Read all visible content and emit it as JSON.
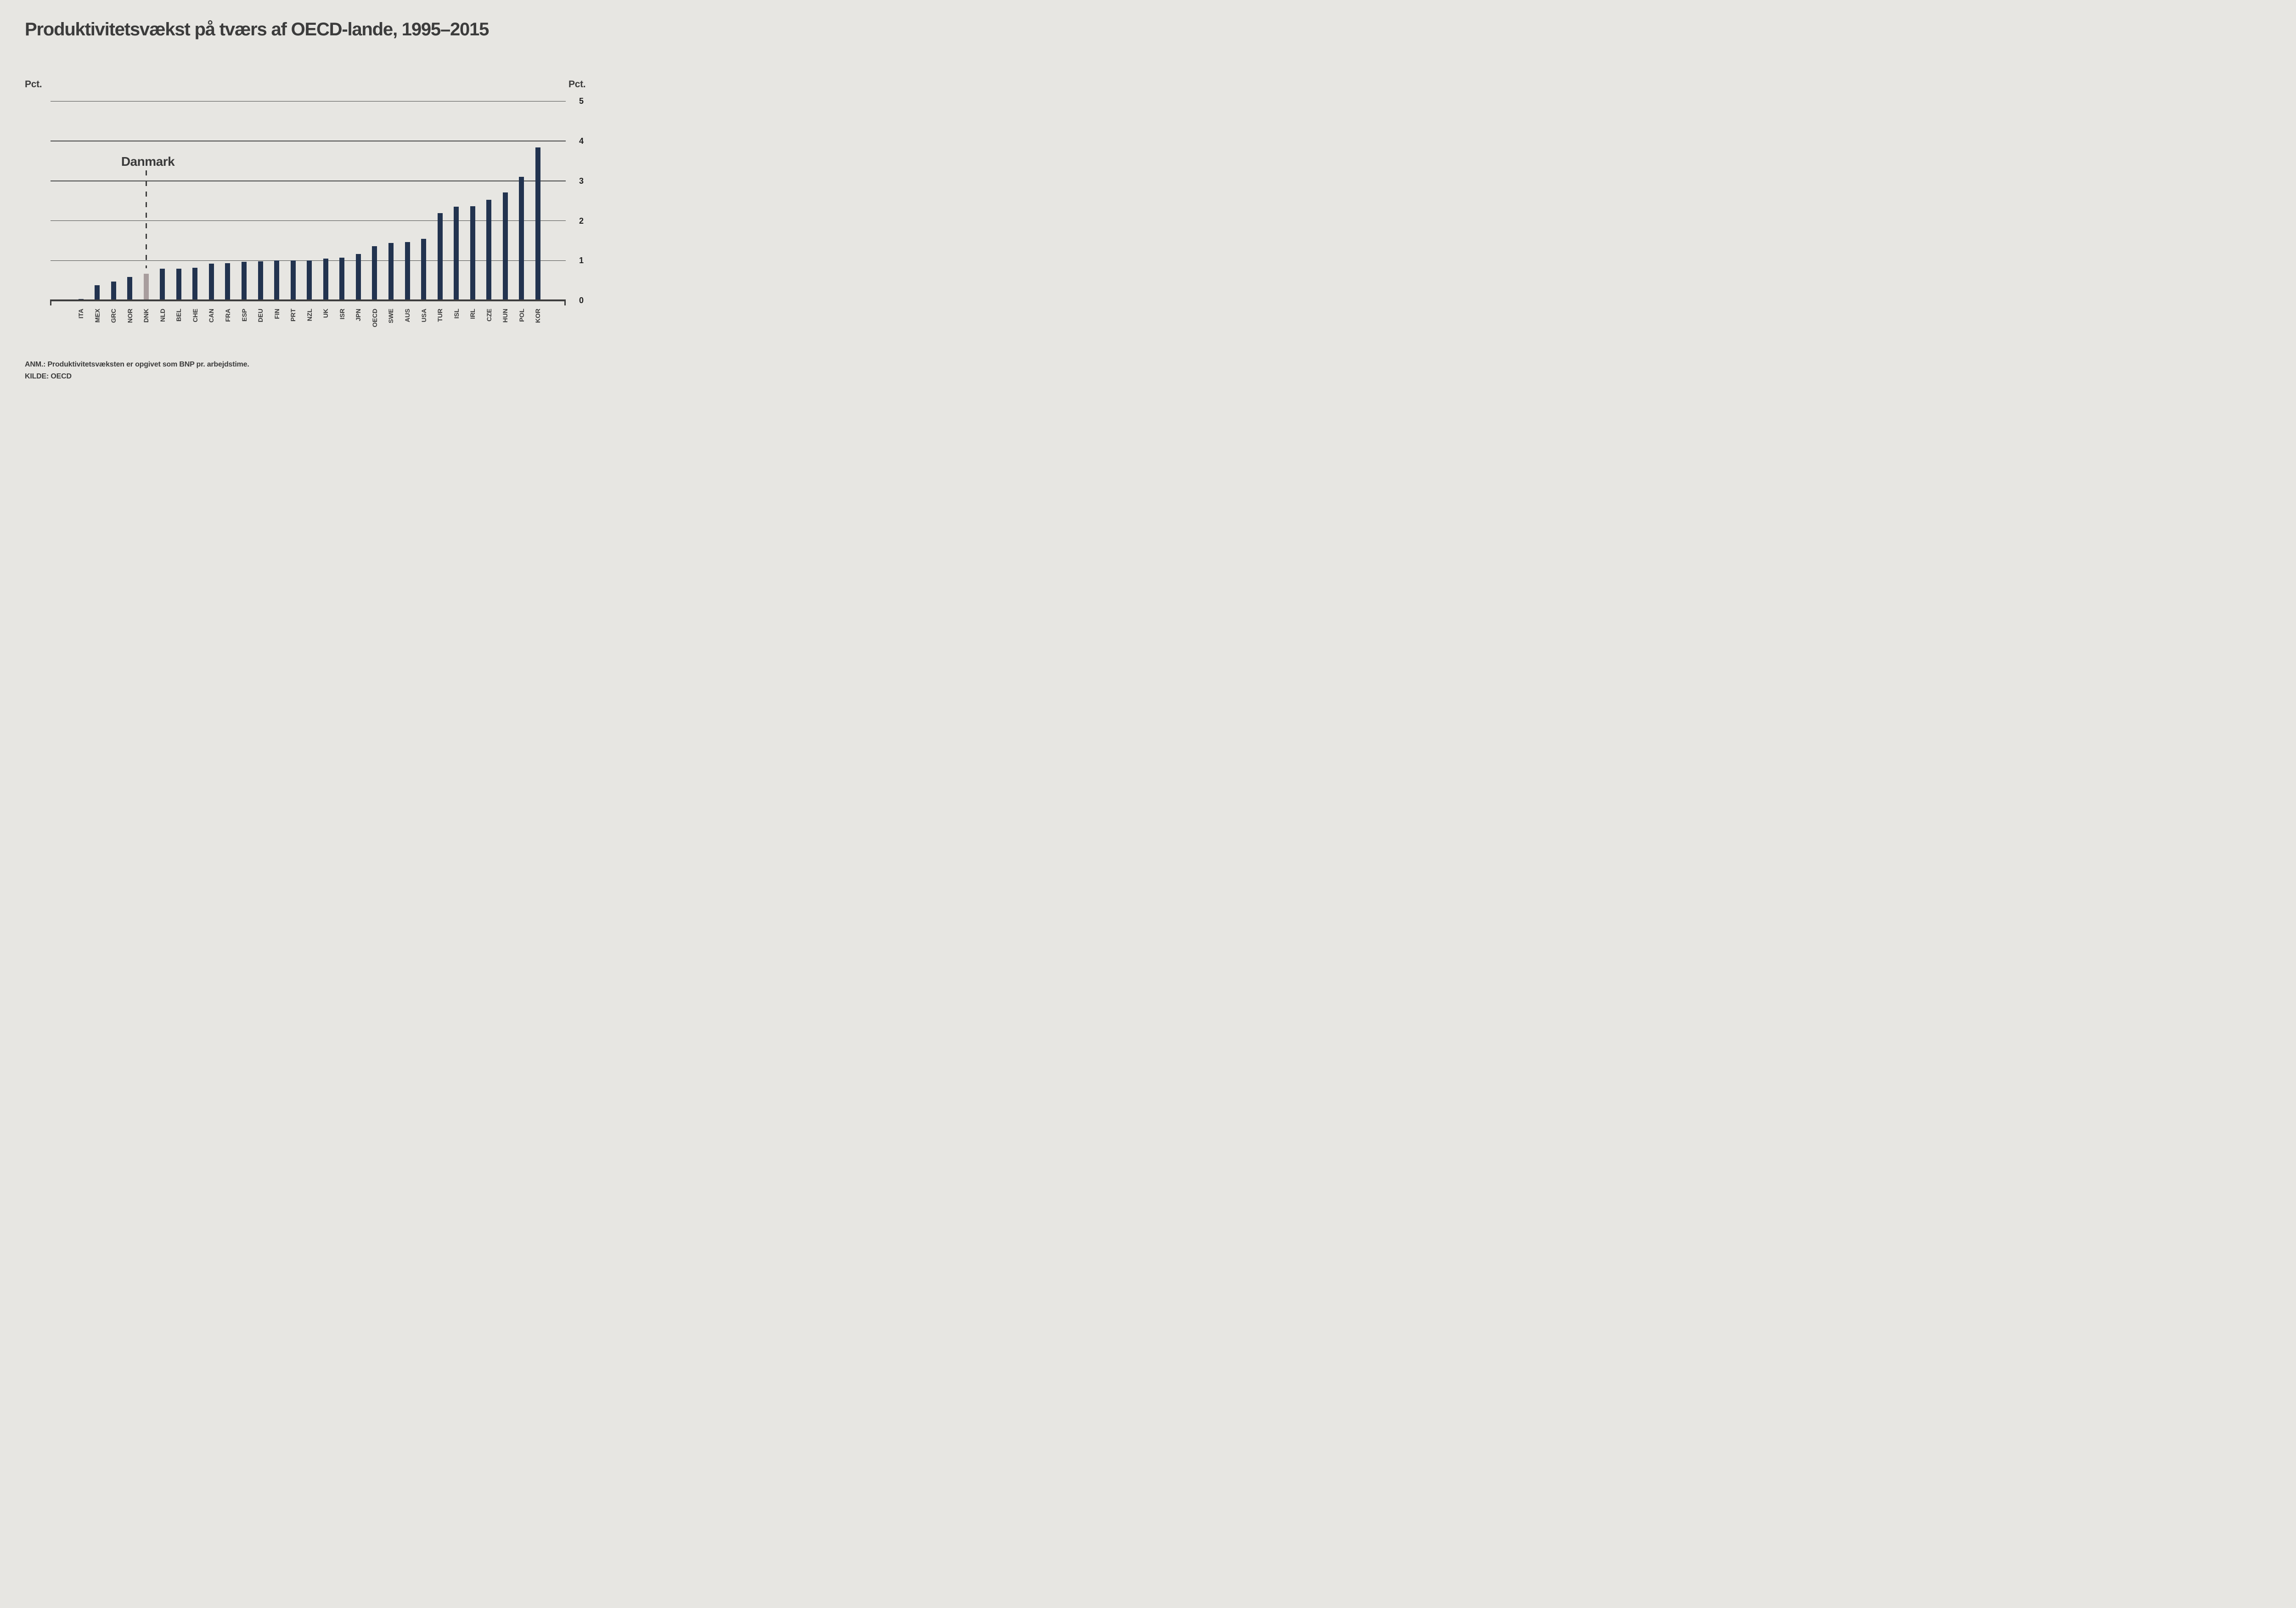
{
  "title": "Produktivitetsvækst på tværs af OECD-lande, 1995–2015",
  "axis": {
    "left_unit_label": "Pct.",
    "right_unit_label": "Pct."
  },
  "annotation": {
    "label": "Danmark",
    "target_category": "DNK"
  },
  "notes": {
    "line1": "ANM.: Produktivitetsvæksten er opgivet som BNP pr. arbejdstime.",
    "line2": "KILDE: OECD"
  },
  "colors": {
    "background": "#e7e6e2",
    "bar": "#22334f",
    "highlight_bar": "#a89d9d",
    "gridline": "#4b4b4b",
    "axis": "#3e3e3e",
    "text": "#3c3c3c",
    "tick_text": "#1f1f1f"
  },
  "chart_data": {
    "type": "bar",
    "title": "Produktivitetsvækst på tværs af OECD-lande, 1995–2015",
    "ylabel": "Pct.",
    "ylim": [
      0,
      5
    ],
    "yticks": [
      0,
      1,
      2,
      3,
      4,
      5
    ],
    "grid": true,
    "legend_position": "none",
    "highlight_category": "DNK",
    "categories": [
      "ITA",
      "MEX",
      "GRC",
      "NOR",
      "DNK",
      "NLD",
      "BEL",
      "CHE",
      "CAN",
      "FRA",
      "ESP",
      "DEU",
      "FIN",
      "PRT",
      "NZL",
      "UK",
      "ISR",
      "JPN",
      "OECD",
      "SWE",
      "AUS",
      "USA",
      "TUR",
      "ISL",
      "IRL",
      "CZE",
      "HUN",
      "POL",
      "KOR"
    ],
    "values": [
      0.04,
      0.38,
      0.47,
      0.59,
      0.67,
      0.8,
      0.8,
      0.82,
      0.92,
      0.93,
      0.97,
      0.98,
      1.0,
      1.0,
      1.0,
      1.05,
      1.07,
      1.16,
      1.36,
      1.44,
      1.46,
      1.54,
      2.19,
      2.35,
      2.36,
      2.52,
      2.71,
      3.1,
      3.84
    ]
  }
}
